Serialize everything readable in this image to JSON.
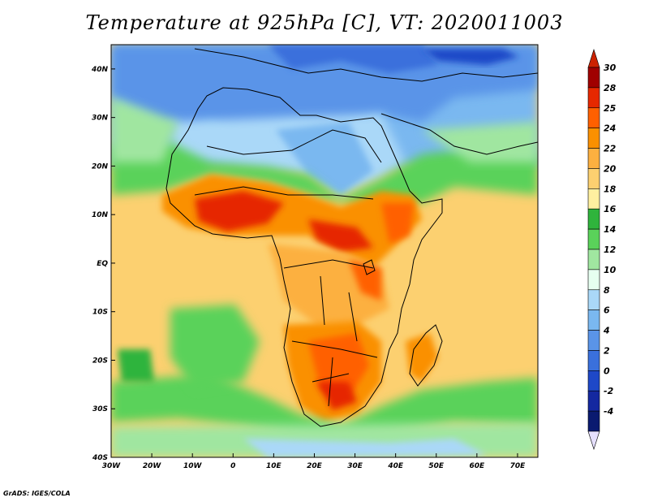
{
  "title": "Temperature at 925hPa [C], VT: 2020011003",
  "credit": "GrADS: IGES/COLA",
  "map": {
    "projection": "lat-lon",
    "lon_range": [
      -30,
      75
    ],
    "lat_range": [
      -40,
      45
    ],
    "lon_ticks": [
      "30W",
      "20W",
      "10W",
      "0",
      "10E",
      "20E",
      "30E",
      "40E",
      "50E",
      "60E",
      "70E"
    ],
    "lon_tick_values": [
      -30,
      -20,
      -10,
      0,
      10,
      20,
      30,
      40,
      50,
      60,
      70
    ],
    "lat_ticks": [
      "40N",
      "30N",
      "20N",
      "10N",
      "EQ",
      "10S",
      "20S",
      "30S",
      "40S"
    ],
    "lat_tick_values": [
      40,
      30,
      20,
      10,
      0,
      -10,
      -20,
      -30,
      -40
    ],
    "field": "temperature",
    "level": "925hPa",
    "units": "C"
  },
  "colorbar": {
    "labels": [
      "30",
      "28",
      "25",
      "24",
      "22",
      "20",
      "18",
      "16",
      "14",
      "12",
      "10",
      "8",
      "6",
      "4",
      "2",
      "0",
      "-2",
      "-4"
    ],
    "colors": [
      "#a00000",
      "#e62800",
      "#ff6000",
      "#fa9000",
      "#fcb040",
      "#fcd070",
      "#fff0a0",
      "#2fb43c",
      "#5ad25a",
      "#a0e6a0",
      "#e6fff0",
      "#aad8f8",
      "#7ab8f0",
      "#5a94e8",
      "#3a70dc",
      "#1e48c8",
      "#1428a0",
      "#0a1a70"
    ],
    "max_color": "#cc2200",
    "min_color": "#e6e0ff"
  },
  "colors": {
    "land_outline": "#000000"
  }
}
